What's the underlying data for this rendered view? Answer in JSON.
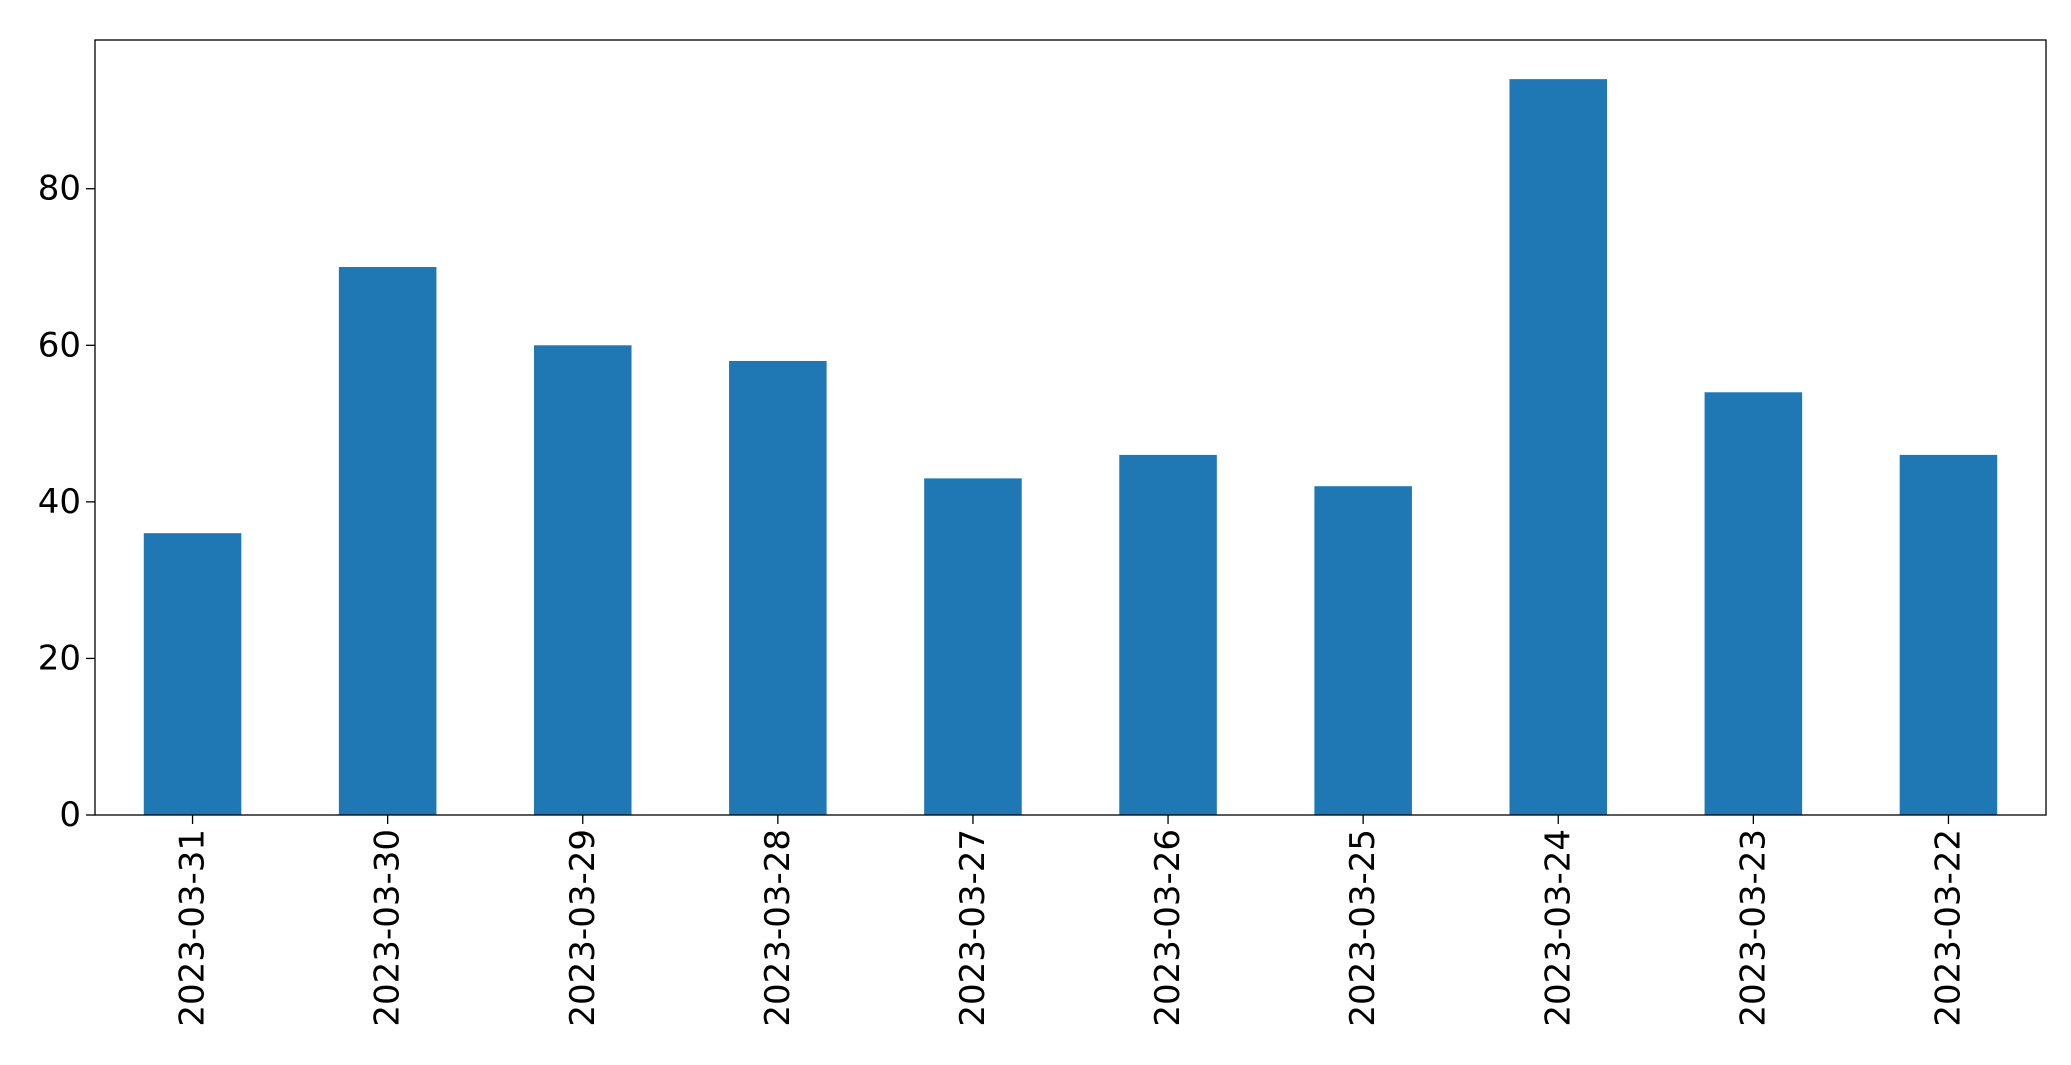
{
  "chart_data": {
    "type": "bar",
    "title": "",
    "xlabel": "",
    "ylabel": "",
    "categories": [
      "2023-03-31",
      "2023-03-30",
      "2023-03-29",
      "2023-03-28",
      "2023-03-27",
      "2023-03-26",
      "2023-03-25",
      "2023-03-24",
      "2023-03-23",
      "2023-03-22"
    ],
    "values": [
      36,
      70,
      60,
      58,
      43,
      46,
      42,
      94,
      54,
      46
    ],
    "ylim": [
      0,
      99
    ],
    "yticks": [
      0,
      20,
      40,
      60,
      80
    ],
    "bar_color": "#1f77b4",
    "grid": false,
    "legend": null
  }
}
